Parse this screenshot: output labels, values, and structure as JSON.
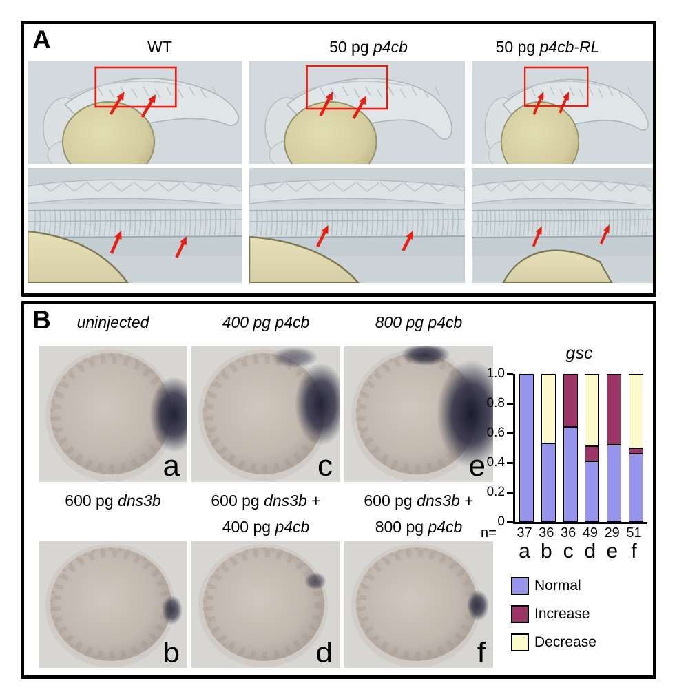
{
  "panelA": {
    "label": "A",
    "column_titles": [
      [
        {
          "t": "WT"
        }
      ],
      [
        {
          "t": "50 pg "
        },
        {
          "t": "p4cb",
          "i": true
        }
      ],
      [
        {
          "t": "50 pg "
        },
        {
          "t": "p4cb-RL",
          "i": true
        }
      ]
    ]
  },
  "panelB": {
    "label": "B",
    "top_captions": [
      [
        {
          "t": "uninjected",
          "i": true
        }
      ],
      [
        {
          "t": "400 pg p4cb",
          "i": true
        }
      ],
      [
        {
          "t": "800 pg p4cb",
          "i": true
        }
      ]
    ],
    "top_letters": [
      "a",
      "c",
      "e"
    ],
    "mid_captions": [
      [
        [
          {
            "t": "600 pg "
          },
          {
            "t": "dns3b",
            "i": true
          }
        ]
      ],
      [
        [
          {
            "t": "600 pg "
          },
          {
            "t": "dns3b",
            "i": true
          },
          {
            "t": " +"
          }
        ],
        [
          {
            "t": "400 pg "
          },
          {
            "t": "p4cb",
            "i": true
          }
        ]
      ],
      [
        [
          {
            "t": "600 pg "
          },
          {
            "t": "dns3b",
            "i": true
          },
          {
            "t": " +"
          }
        ],
        [
          {
            "t": "800 pg "
          },
          {
            "t": "p4cb",
            "i": true
          }
        ]
      ]
    ],
    "bottom_letters": [
      "b",
      "d",
      "f"
    ]
  },
  "chart_data": {
    "type": "stacked-bar",
    "title": "gsc",
    "categories": [
      "a",
      "b",
      "c",
      "d",
      "e",
      "f"
    ],
    "n_prefix": "n=",
    "n_values": [
      37,
      36,
      36,
      49,
      29,
      51
    ],
    "series": [
      {
        "name": "Normal",
        "color": "#9795EB",
        "values": [
          1.0,
          0.53,
          0.64,
          0.41,
          0.52,
          0.46
        ]
      },
      {
        "name": "Increase",
        "color": "#9A3566",
        "values": [
          0,
          0,
          0.36,
          0.1,
          0.48,
          0.04
        ]
      },
      {
        "name": "Decrease",
        "color": "#FBFACD",
        "values": [
          0,
          0.47,
          0,
          0.49,
          0,
          0.5
        ]
      }
    ],
    "ylim": [
      0,
      1.0
    ],
    "ytick_labels": [
      "0",
      "0.2",
      "0.4",
      "0.6",
      "0.8",
      "1.0"
    ],
    "grid": false,
    "legend_position": "below-right",
    "axis_color": "#000000",
    "annotation_color_red": "#E61E14"
  }
}
